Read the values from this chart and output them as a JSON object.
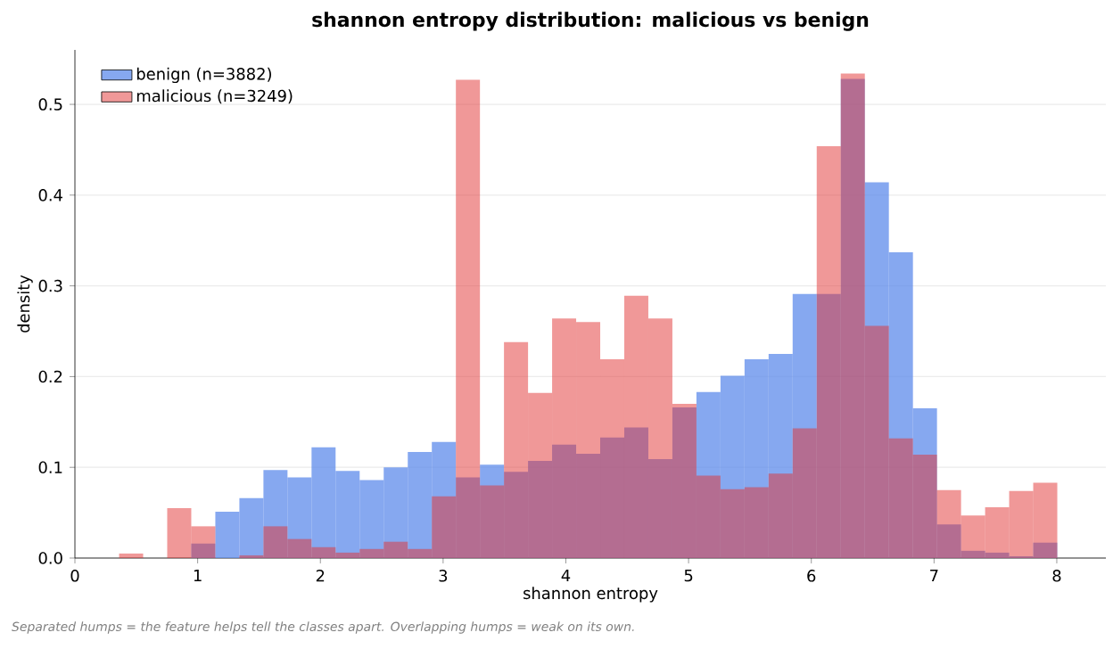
{
  "chart_data": {
    "type": "histogram",
    "title": "shannon entropy distribution: malicious vs benign",
    "xlabel": "shannon entropy",
    "ylabel": "density",
    "bins": [
      0.36,
      0.556,
      0.752,
      0.948,
      1.144,
      1.34,
      1.536,
      1.732,
      1.928,
      2.124,
      2.32,
      2.516,
      2.712,
      2.908,
      3.104,
      3.3,
      3.496,
      3.692,
      3.888,
      4.084,
      4.28,
      4.476,
      4.672,
      4.868,
      5.064,
      5.26,
      5.456,
      5.652,
      5.848,
      6.044,
      6.24,
      6.436,
      6.632,
      6.828,
      7.024,
      7.22,
      7.416,
      7.612,
      7.808,
      8.004
    ],
    "series": [
      {
        "name": "benign (n=3882)",
        "color": "#86a8f0",
        "values": [
          0,
          0,
          0,
          0.016,
          0.051,
          0.066,
          0.097,
          0.089,
          0.122,
          0.096,
          0.086,
          0.1,
          0.117,
          0.128,
          0.089,
          0.103,
          0.095,
          0.107,
          0.125,
          0.115,
          0.133,
          0.144,
          0.109,
          0.166,
          0.183,
          0.201,
          0.219,
          0.225,
          0.291,
          0.291,
          0.528,
          0.414,
          0.337,
          0.165,
          0.037,
          0.008,
          0.006,
          0.002,
          0.017
        ]
      },
      {
        "name": "malicious (n=3249)",
        "color": "#f09898",
        "values": [
          0.005,
          0,
          0.055,
          0.035,
          0,
          0.003,
          0.035,
          0.021,
          0.012,
          0.006,
          0.01,
          0.018,
          0.01,
          0.068,
          0.527,
          0.08,
          0.238,
          0.182,
          0.264,
          0.26,
          0.219,
          0.289,
          0.264,
          0.17,
          0.091,
          0.076,
          0.078,
          0.093,
          0.143,
          0.454,
          0.534,
          0.256,
          0.132,
          0.114,
          0.075,
          0.047,
          0.056,
          0.074,
          0.083
        ]
      }
    ],
    "xlim": [
      0,
      8.4
    ],
    "ylim": [
      0,
      0.56
    ],
    "xticks": [
      0,
      1,
      2,
      3,
      4,
      5,
      6,
      7,
      8
    ],
    "yticks": [
      {
        "value": 0,
        "label": "0.0"
      },
      {
        "value": 0.1,
        "label": "0.1"
      },
      {
        "value": 0.2,
        "label": "0.2"
      },
      {
        "value": 0.3,
        "label": "0.3"
      },
      {
        "value": 0.4,
        "label": "0.4"
      },
      {
        "value": 0.5,
        "label": "0.5"
      }
    ],
    "grid": "y",
    "legend": "top left",
    "annotations": [
      "Separated humps = the feature helps tell the classes apart. Overlapping humps = weak on its own."
    ]
  }
}
